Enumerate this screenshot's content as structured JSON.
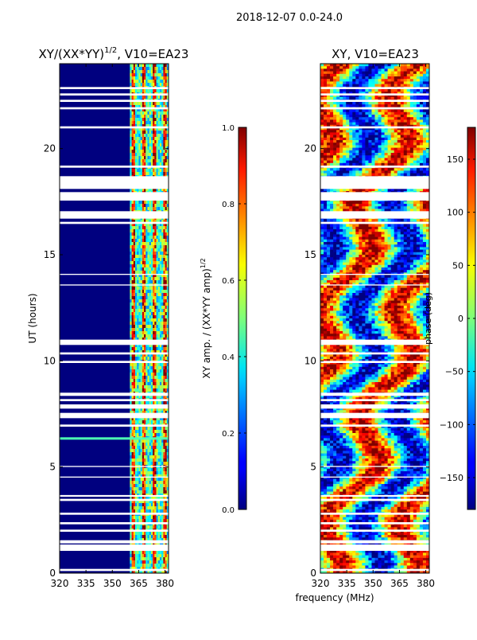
{
  "figure": {
    "suptitle": "2018-12-07 0.0-24.0",
    "shared_xlabel": "frequency (MHz)"
  },
  "colors": {
    "background": "#ffffff",
    "panel_fill": "#00007f",
    "axis": "#000000",
    "gap": "#ffffff"
  },
  "chart_data": [
    {
      "type": "heatmap",
      "title_main": "XY/(XX*YY)",
      "title_exp": "1/2",
      "title_tail": ", V10=EA23",
      "xlabel": "",
      "ylabel": "UT (hours)",
      "xlim": [
        320,
        382
      ],
      "ylim": [
        0,
        24
      ],
      "xticks": [
        320,
        335,
        350,
        365,
        380
      ],
      "yticks": [
        0,
        5,
        10,
        15,
        20
      ],
      "colorbar": {
        "label_main": "XY amp. / (XX*YY amp)",
        "label_exp": "1/2",
        "range": [
          0.0,
          1.0
        ],
        "ticks": [
          "0.0",
          "0.2",
          "0.4",
          "0.6",
          "0.8",
          "1.0"
        ],
        "tick_values": [
          0.0,
          0.2,
          0.4,
          0.6,
          0.8,
          1.0
        ],
        "colormap": "jet"
      },
      "features": {
        "high_band_mhz": [
          360,
          382
        ],
        "line_channels_mhz": [
          362,
          368,
          374,
          380
        ]
      }
    },
    {
      "type": "heatmap",
      "title_main": "XY, V10=EA23",
      "xlabel": "frequency (MHz)",
      "ylabel": "",
      "xlim": [
        320,
        382
      ],
      "ylim": [
        0,
        24
      ],
      "xticks": [
        320,
        335,
        350,
        365,
        380
      ],
      "yticks": [
        0,
        5,
        10,
        15,
        20
      ],
      "colorbar": {
        "label_main": "phase (deg)",
        "range": [
          -180,
          180
        ],
        "ticks": [
          "150",
          "100",
          "50",
          "0",
          "−50",
          "−100",
          "−150"
        ],
        "tick_values": [
          150,
          100,
          50,
          0,
          -50,
          -100,
          -150
        ],
        "colormap": "jet"
      }
    }
  ],
  "data_gaps_ut_hours": [
    [
      0.1,
      0.2
    ],
    [
      1.05,
      1.35
    ],
    [
      1.4,
      1.55
    ],
    [
      1.95,
      2.05
    ],
    [
      2.3,
      2.4
    ],
    [
      2.75,
      2.85
    ],
    [
      3.4,
      3.5
    ],
    [
      3.6,
      3.68
    ],
    [
      4.5,
      4.55
    ],
    [
      5.0,
      5.05
    ],
    [
      6.9,
      7.0
    ],
    [
      7.3,
      7.55
    ],
    [
      7.75,
      7.95
    ],
    [
      8.1,
      8.2
    ],
    [
      8.35,
      8.5
    ],
    [
      9.9,
      10.0
    ],
    [
      10.3,
      10.4
    ],
    [
      10.75,
      11.0
    ],
    [
      13.55,
      13.6
    ],
    [
      14.05,
      14.1
    ],
    [
      16.45,
      16.55
    ],
    [
      16.7,
      17.05
    ],
    [
      17.55,
      17.95
    ],
    [
      18.1,
      18.7
    ],
    [
      19.1,
      19.2
    ],
    [
      20.95,
      21.05
    ],
    [
      21.85,
      21.95
    ],
    [
      22.2,
      22.3
    ],
    [
      22.5,
      22.6
    ],
    [
      22.8,
      22.9
    ]
  ]
}
